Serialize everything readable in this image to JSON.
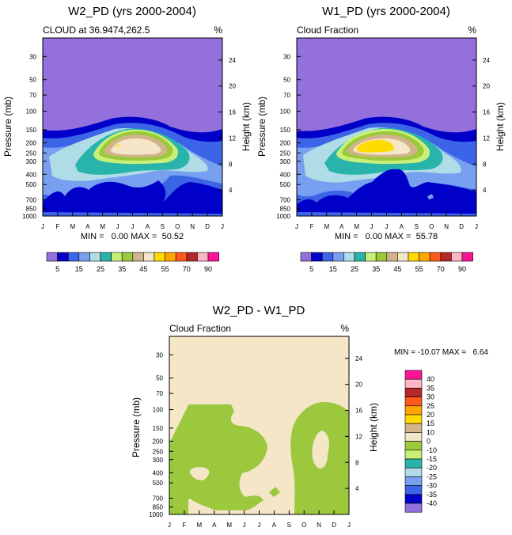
{
  "colors": {
    "lavender": "#9370db",
    "navy": "#0000c8",
    "royal": "#3c64e6",
    "cornflower": "#78a0f0",
    "lightblue": "#afdce6",
    "teal": "#28b4aa",
    "lime": "#c8f078",
    "olive": "#9bc83c",
    "tan": "#d2b48c",
    "cream": "#f5e6c8",
    "yellow": "#ffdc00",
    "orange": "#ffa500",
    "redorange": "#ff5a1e",
    "brick": "#b42828",
    "pink": "#ffb4c8",
    "magenta": "#ff1496"
  },
  "chart_data": [
    {
      "type": "contour",
      "title": "W2_PD (yrs 2000-2004)",
      "left_string": "CLOUD at 36.9474,262.5",
      "right_string": "%",
      "ylabel": "Pressure (mb)",
      "ylabel_right": "Height (km)",
      "x_ticks": [
        "J",
        "F",
        "M",
        "A",
        "M",
        "J",
        "J",
        "A",
        "S",
        "O",
        "N",
        "D",
        "J"
      ],
      "y_ticks": [
        "30",
        "50",
        "70",
        "100",
        "150",
        "200",
        "250",
        "300",
        "400",
        "500",
        "700",
        "850",
        "1000"
      ],
      "height_ticks": [
        "24",
        "20",
        "16",
        "12",
        "8",
        "4"
      ],
      "ylim_mb": [
        1000,
        20
      ],
      "min_max": "MIN =   0.00 MAX =  50.52",
      "peak_value": 50.52
    },
    {
      "type": "contour",
      "title": "W1_PD (yrs 2000-2004)",
      "left_string": "Cloud Fraction",
      "right_string": "%",
      "ylabel": "Pressure (mb)",
      "ylabel_right": "Height (km)",
      "x_ticks": [
        "J",
        "F",
        "M",
        "A",
        "M",
        "J",
        "J",
        "A",
        "S",
        "O",
        "N",
        "D",
        "J"
      ],
      "y_ticks": [
        "30",
        "50",
        "70",
        "100",
        "150",
        "200",
        "250",
        "300",
        "400",
        "500",
        "700",
        "850",
        "1000"
      ],
      "height_ticks": [
        "24",
        "20",
        "16",
        "12",
        "8",
        "4"
      ],
      "ylim_mb": [
        1000,
        20
      ],
      "min_max": "MIN =   0.00 MAX =  55.78",
      "peak_value": 55.78
    },
    {
      "type": "contour",
      "title": "W2_PD - W1_PD",
      "left_string": "Cloud Fraction",
      "right_string": "%",
      "ylabel": "Pressure (mb)",
      "ylabel_right": "Height (km)",
      "x_ticks": [
        "J",
        "F",
        "M",
        "A",
        "M",
        "J",
        "J",
        "A",
        "S",
        "O",
        "N",
        "D",
        "J"
      ],
      "y_ticks": [
        "30",
        "50",
        "70",
        "100",
        "150",
        "200",
        "250",
        "300",
        "400",
        "500",
        "700",
        "850",
        "1000"
      ],
      "height_ticks": [
        "24",
        "20",
        "16",
        "12",
        "8",
        "4"
      ],
      "ylim_mb": [
        1000,
        20
      ],
      "min_max": "MIN = -10.07 MAX =   6.64",
      "min_value": -10.07,
      "max_value": 6.64
    }
  ],
  "colorbar_top": {
    "levels": [
      5,
      10,
      15,
      20,
      25,
      30,
      35,
      40,
      45,
      50,
      55,
      60,
      70,
      80,
      90
    ],
    "labels": [
      "5",
      "15",
      "25",
      "35",
      "45",
      "55",
      "70",
      "90"
    ],
    "colors": [
      "#9370db",
      "#0000c8",
      "#3c64e6",
      "#78a0f0",
      "#afdce6",
      "#28b4aa",
      "#c8f078",
      "#9bc83c",
      "#d2b48c",
      "#f5e6c8",
      "#ffdc00",
      "#ffa500",
      "#ff5a1e",
      "#b42828",
      "#ffb4c8",
      "#ff1496"
    ]
  },
  "colorbar_diff": {
    "labels": [
      "40",
      "35",
      "30",
      "25",
      "20",
      "15",
      "10",
      "0",
      "-10",
      "-15",
      "-20",
      "-25",
      "-30",
      "-35",
      "-40"
    ],
    "colors": [
      "#ff1496",
      "#ffb4c8",
      "#b42828",
      "#ff5a1e",
      "#ffa500",
      "#ffdc00",
      "#d2b48c",
      "#f5e6c8",
      "#9bc83c",
      "#c8f078",
      "#28b4aa",
      "#afdce6",
      "#78a0f0",
      "#3c64e6",
      "#0000c8",
      "#9370db"
    ]
  }
}
